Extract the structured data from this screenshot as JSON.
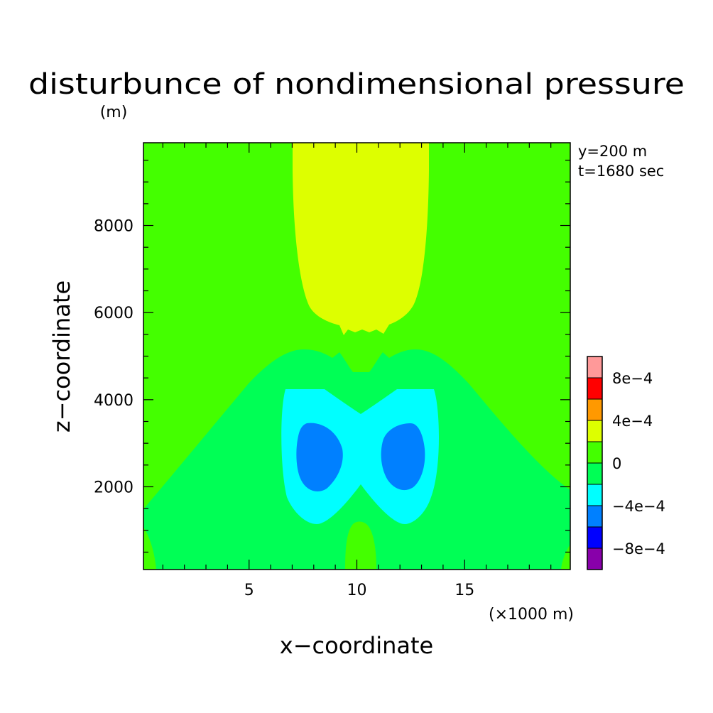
{
  "chart_data": {
    "type": "contour",
    "title": "disturbunce of nondimensional pressure",
    "xlabel": "x−coordinate",
    "ylabel": "z−coordinate",
    "x_unit": "(×1000 m)",
    "y_unit": "(m)",
    "info": [
      "y=200 m",
      "t=1680 sec"
    ],
    "xlim": [
      0.1,
      19.9
    ],
    "ylim": [
      100,
      9900
    ],
    "xticks": [
      5,
      10,
      15
    ],
    "xtick_labels": [
      "5",
      "10",
      "15"
    ],
    "yticks": [
      2000,
      4000,
      6000,
      8000
    ],
    "ytick_labels": [
      "2000",
      "4000",
      "6000",
      "8000"
    ],
    "grid": false,
    "colorbar": {
      "levels": [
        -0.001,
        -0.0008,
        -0.0006,
        -0.0004,
        -0.0002,
        0.0,
        0.0002,
        0.0004,
        0.0006,
        0.0008,
        0.001
      ],
      "colors": [
        "#8800aa",
        "#0000ff",
        "#0080ff",
        "#00ffff",
        "#00ff55",
        "#44ff00",
        "#ddff00",
        "#ff9900",
        "#ff0000",
        "#ff9999"
      ],
      "labels": [
        {
          "value": 0.0008,
          "text": "8e−4"
        },
        {
          "value": 0.0004,
          "text": "4e−4"
        },
        {
          "value": 0.0,
          "text": "0"
        },
        {
          "value": -0.0004,
          "text": "−4e−4"
        },
        {
          "value": -0.0008,
          "text": "−8e−4"
        }
      ]
    }
  }
}
